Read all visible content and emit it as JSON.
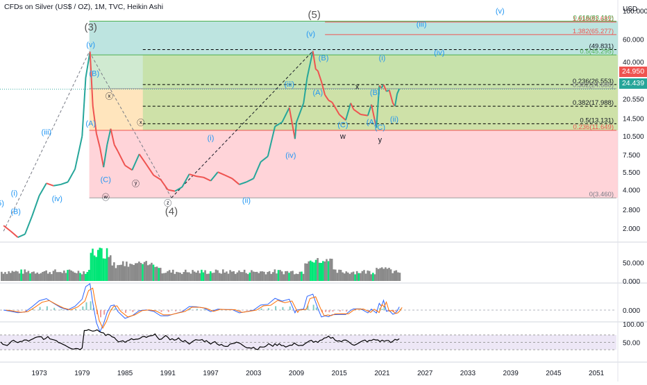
{
  "header": {
    "title": "CFDs on Silver (US$ / OZ), 1M, TVC, Heikin Ashi",
    "currency": "USD"
  },
  "price_tags": {
    "last": "24.950",
    "prev": "24.439"
  },
  "colors": {
    "up": "#26a69a",
    "down": "#ef5350",
    "fib_green": "#c8e6c9",
    "fib_teal": "#b2dfdb",
    "fib_orange": "#ffe0b2",
    "fib_red": "#ffcdd2",
    "volume_grey": "#8a8a8a",
    "volume_green": "#00e676",
    "macd": "#2962ff",
    "signal": "#ff6d00",
    "rsi": "#000000",
    "rsi_band": "#ede7f6",
    "wave_label": "#2196f3",
    "line_red": "#ef5350"
  },
  "chart_data": [
    {
      "type": "line",
      "name": "price",
      "yscale": "log",
      "ylim": [
        1.6,
        110
      ],
      "xlim": [
        1967.5,
        2054
      ],
      "x_ticks": [
        "1973",
        "1979",
        "1985",
        "1991",
        "1997",
        "2003",
        "2009",
        "2015",
        "2021",
        "2027",
        "2033",
        "2039",
        "2045",
        "2051"
      ],
      "y_ticks": [
        "100.000",
        "60.000",
        "40.000",
        "20.550",
        "14.500",
        "10.500",
        "7.500",
        "5.500",
        "4.000",
        "2.800",
        "2.000"
      ],
      "series": [
        {
          "x": [
            1968,
            1969,
            1970,
            1971,
            1972,
            1973,
            1974,
            1975,
            1976,
            1977,
            1978,
            1979,
            1979.5,
            1980.1,
            1980.5,
            1981,
            1981.5,
            1982,
            1982.5,
            1983,
            1983.5,
            1984,
            1985,
            1986,
            1987,
            1988,
            1989,
            1990,
            1991,
            1992,
            1993,
            1994,
            1995,
            1996,
            1997,
            1998,
            1999,
            2000,
            2001,
            2002,
            2003,
            2004,
            2005,
            2006,
            2007,
            2008,
            2008.8,
            2009,
            2010,
            2010.5,
            2011.3,
            2011.7,
            2012,
            2012.5,
            2013,
            2013.5,
            2014,
            2015,
            2015.9,
            2016.6,
            2017,
            2018,
            2019,
            2019.5,
            2020.2,
            2020.6,
            2020.9,
            2021.2,
            2021.6,
            2022,
            2022.5,
            2022.8,
            2023.1,
            2023.4
          ],
          "values": [
            2.1,
            1.9,
            1.7,
            1.8,
            2.5,
            3.6,
            4.5,
            4.3,
            4.4,
            4.6,
            5.8,
            10.5,
            30,
            48,
            18,
            11,
            8.5,
            6,
            9,
            12,
            9,
            8,
            6.2,
            5.7,
            7.6,
            6.3,
            5.2,
            4.8,
            4.0,
            3.9,
            4.2,
            5.3,
            5.1,
            5.0,
            4.7,
            5.5,
            5.2,
            4.9,
            4.4,
            4.6,
            4.9,
            6.6,
            7.3,
            12.5,
            13.5,
            17.5,
            10,
            13.5,
            19,
            30,
            48.5,
            35,
            34,
            28,
            22,
            20,
            19.3,
            15.5,
            14,
            19,
            17,
            15.5,
            15.2,
            18.5,
            12.2,
            26,
            25,
            26.5,
            23.5,
            24,
            19,
            18,
            22.5,
            24.5
          ]
        }
      ],
      "fib_levels": [
        {
          "label": "1.618(81.681)",
          "value": 81.681
        },
        {
          "label": "1.382(65.277)",
          "value": 65.277
        },
        {
          "label": "0.618(83.110)",
          "value": 83.11
        },
        {
          "label": "(49.831)",
          "value": 49.831
        },
        {
          "label": "0.5(45.295)",
          "value": 45.295
        },
        {
          "label": "0.236(26.553)",
          "value": 26.553
        },
        {
          "label": "0.382(24.686)",
          "value": 24.686
        },
        {
          "label": "0.382(17.988)",
          "value": 17.988
        },
        {
          "label": "0.5(13.131)",
          "value": 13.131
        },
        {
          "label": "0.236(11.649)",
          "value": 11.649
        },
        {
          "label": "0(3.460)",
          "value": 3.46
        }
      ],
      "annotations": [
        {
          "text": "(3)",
          "x": 1980.2,
          "y": 70
        },
        {
          "text": "(v)",
          "x": 1980.2,
          "y": 52
        },
        {
          "text": "(B)",
          "x": 1980.7,
          "y": 31
        },
        {
          "text": "(A)",
          "x": 1980.2,
          "y": 12.6
        },
        {
          "text": "(C)",
          "x": 1982.3,
          "y": 4.6
        },
        {
          "text": "ⓧ",
          "x": 1982.8,
          "y": 20.5
        },
        {
          "text": "ⓧ",
          "x": 1987.2,
          "y": 12.8
        },
        {
          "text": "ⓦ",
          "x": 1982.3,
          "y": 3.35
        },
        {
          "text": "ⓨ",
          "x": 1986.5,
          "y": 4.25
        },
        {
          "text": "ⓩ",
          "x": 1991.0,
          "y": 3.0
        },
        {
          "text": "(4)",
          "x": 1991.5,
          "y": 2.55
        },
        {
          "text": "(i)",
          "x": 1997.0,
          "y": 9.7
        },
        {
          "text": "(ii)",
          "x": 2002.0,
          "y": 3.15
        },
        {
          "text": "(iii)",
          "x": 2008.0,
          "y": 25.5
        },
        {
          "text": "(iv)",
          "x": 2008.2,
          "y": 7.1
        },
        {
          "text": "(5)",
          "x": 2011.5,
          "y": 88
        },
        {
          "text": "(v)",
          "x": 2011.0,
          "y": 63
        },
        {
          "text": "(B)",
          "x": 2012.8,
          "y": 41
        },
        {
          "text": "(A)",
          "x": 2012.0,
          "y": 22.0
        },
        {
          "text": "(C)",
          "x": 2015.5,
          "y": 12.3
        },
        {
          "text": "w",
          "x": 2015.5,
          "y": 10.0
        },
        {
          "text": "x",
          "x": 2017.5,
          "y": 24.4
        },
        {
          "text": "(B)",
          "x": 2020.0,
          "y": 22.0
        },
        {
          "text": "(A)",
          "x": 2019.5,
          "y": 12.9
        },
        {
          "text": "(C)",
          "x": 2020.7,
          "y": 11.8
        },
        {
          "text": "y",
          "x": 2020.7,
          "y": 9.4
        },
        {
          "text": "(i)",
          "x": 2021.0,
          "y": 41
        },
        {
          "text": "(ii)",
          "x": 2022.7,
          "y": 13.6
        },
        {
          "text": "(iii)",
          "x": 2026.5,
          "y": 75
        },
        {
          "text": "(iv)",
          "x": 2029.0,
          "y": 45
        },
        {
          "text": "(v)",
          "x": 2037.5,
          "y": 95
        },
        {
          "text": "(i)",
          "x": 1969.5,
          "y": 3.6
        },
        {
          "text": "(iii)",
          "x": 1974.0,
          "y": 10.8
        },
        {
          "text": "(iv)",
          "x": 1975.5,
          "y": 3.25
        },
        {
          "text": "(B)",
          "x": 1969.7,
          "y": 2.58
        },
        {
          "text": "5)",
          "x": 1967.6,
          "y": 3.0
        }
      ]
    },
    {
      "type": "bar",
      "name": "volume",
      "y_ticks": [
        "50.000",
        "0.000"
      ],
      "ylim": [
        0,
        100
      ]
    },
    {
      "type": "line",
      "name": "macd",
      "y_ticks": [
        "0.000"
      ]
    },
    {
      "type": "line",
      "name": "rsi",
      "y_ticks": [
        "100.00",
        "50.00"
      ],
      "ylim": [
        0,
        100
      ],
      "band": [
        30,
        70
      ]
    }
  ]
}
